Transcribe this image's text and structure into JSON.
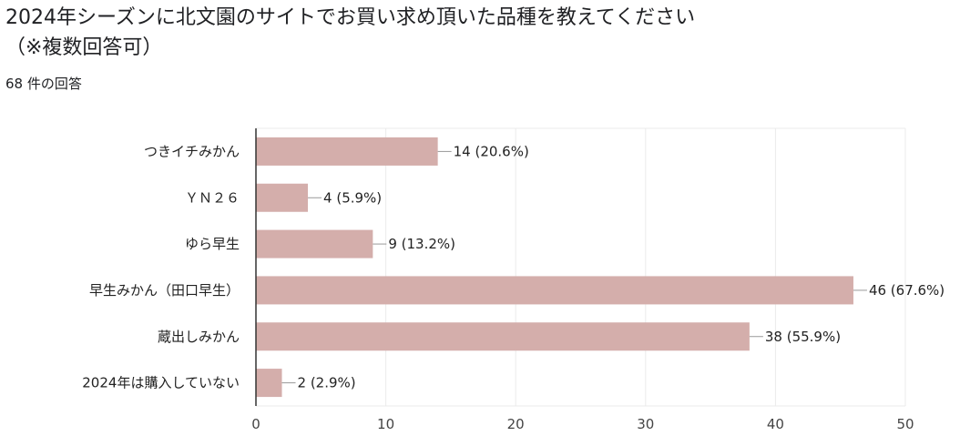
{
  "question": {
    "title_line1": "2024年シーズンに北文園のサイトでお買い求め頂いた品種を教えてください",
    "title_line2": "（※複数回答可）",
    "response_count": "68 件の回答"
  },
  "colors": {
    "bar": "#d4aeab",
    "grid": "#ebebeb",
    "axis": "#333333",
    "leader": "#999999"
  },
  "chart_data": {
    "type": "bar",
    "orientation": "horizontal",
    "title": "",
    "xlabel": "",
    "ylabel": "",
    "categories": [
      "つきイチみかん",
      "ＹＮ２６",
      "ゆら早生",
      "早生みかん（田口早生）",
      "蔵出しみかん",
      "2024年は購入していない"
    ],
    "values": [
      14,
      4,
      9,
      46,
      38,
      2
    ],
    "data_labels": [
      "14 (20.6%)",
      "4 (5.9%)",
      "9 (13.2%)",
      "46 (67.6%)",
      "38 (55.9%)",
      "2 (2.9%)"
    ],
    "xlim": [
      0,
      50
    ],
    "x_ticks": [
      "0",
      "10",
      "20",
      "30",
      "40",
      "50"
    ],
    "grid": true,
    "legend": "none"
  }
}
